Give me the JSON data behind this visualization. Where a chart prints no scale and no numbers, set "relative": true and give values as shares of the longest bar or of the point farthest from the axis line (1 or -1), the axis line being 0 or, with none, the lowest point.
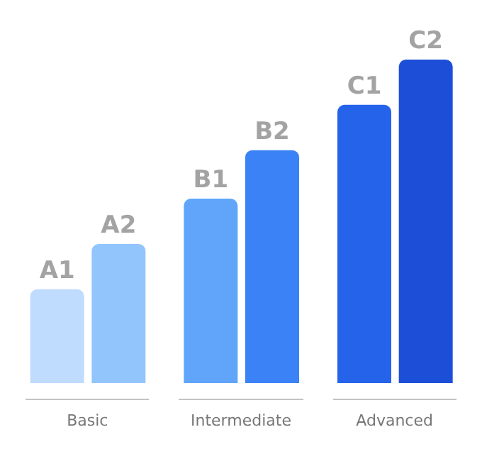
{
  "chart_data": {
    "type": "bar",
    "relative": true,
    "categories": [
      "A1",
      "A2",
      "B1",
      "B2",
      "C1",
      "C2"
    ],
    "values": [
      0.29,
      0.43,
      0.57,
      0.72,
      0.86,
      1
    ],
    "colors": [
      "#bfdbfe",
      "#93c5fd",
      "#60a5fa",
      "#3b82f6",
      "#2563eb",
      "#1d4ed8"
    ],
    "annotations": [
      "Basic",
      "Intermediate",
      "Advanced"
    ]
  }
}
